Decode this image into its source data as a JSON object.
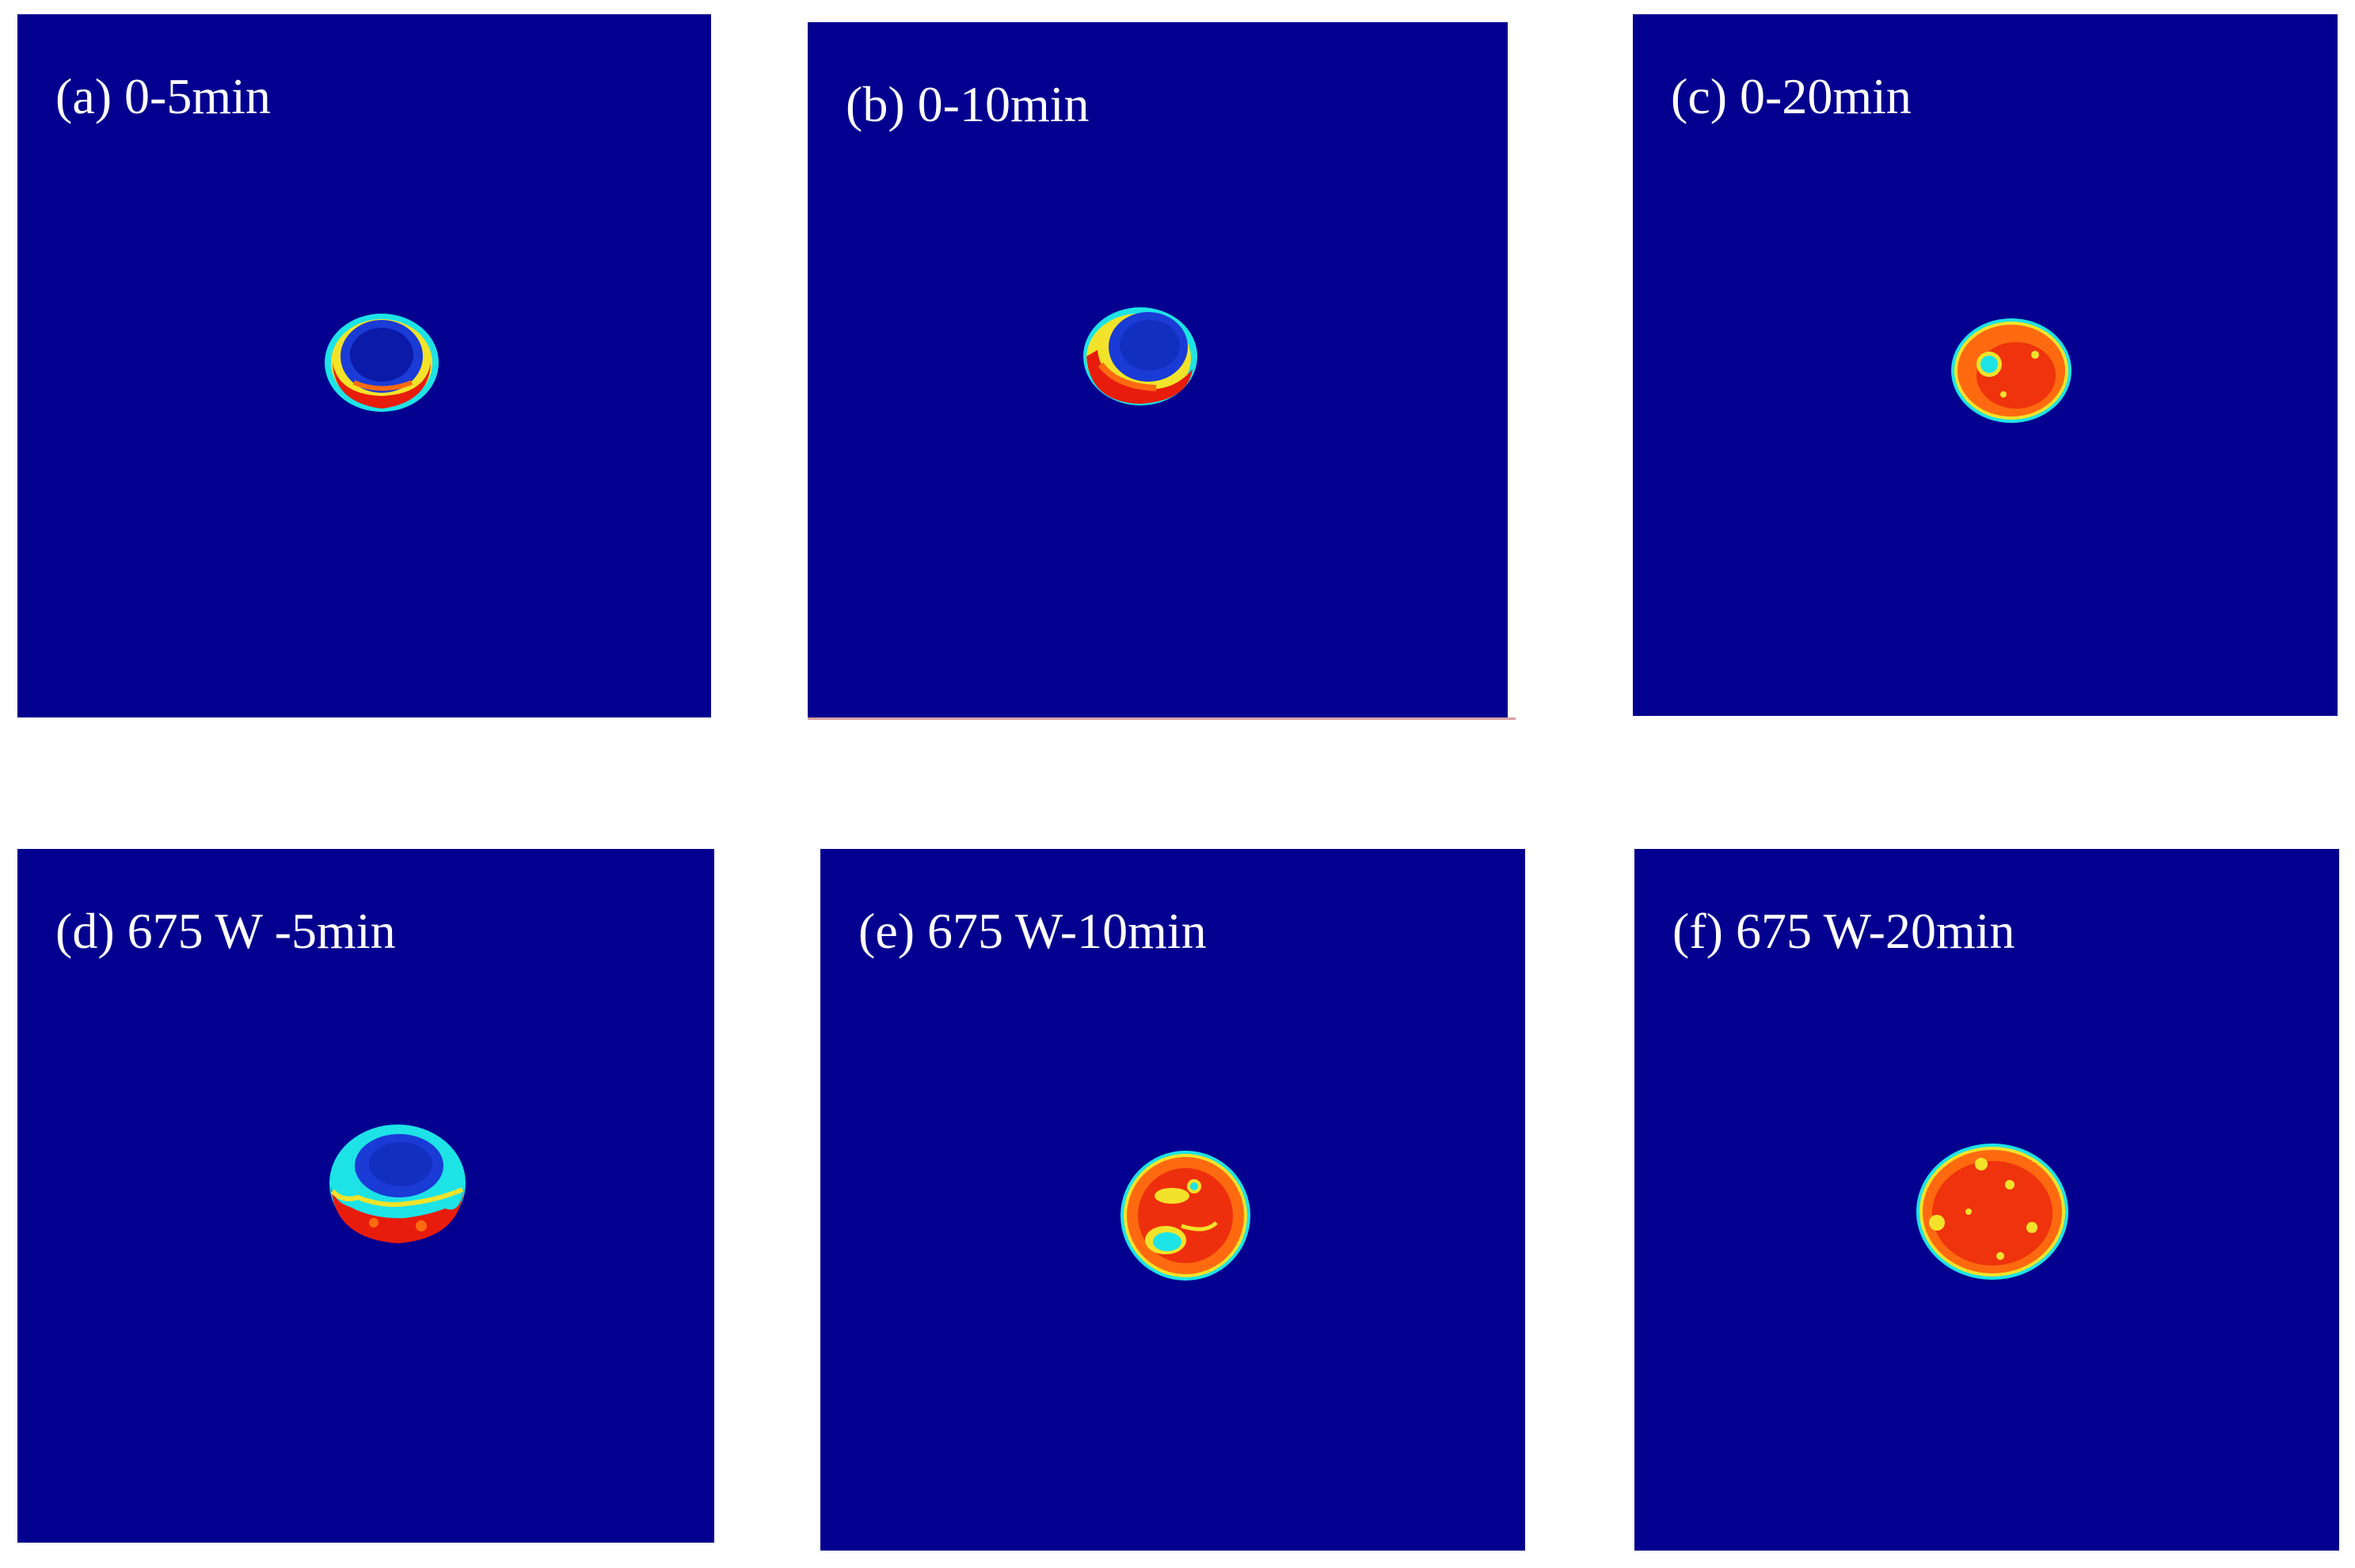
{
  "panels": [
    {
      "id": "a",
      "label": "(a) 0-5min"
    },
    {
      "id": "b",
      "label": "(b) 0-10min"
    },
    {
      "id": "c",
      "label": "(c) 0-20min"
    },
    {
      "id": "d",
      "label": "(d) 675 W -5min"
    },
    {
      "id": "e",
      "label": "(e) 675 W-10min"
    },
    {
      "id": "f",
      "label": "(f) 675 W-20min"
    }
  ],
  "colors": {
    "background": "#04008f",
    "cyan": "#1de3e6",
    "yellow": "#f2e32a",
    "orange": "#ff6a10",
    "red": "#e81c0c",
    "blue_inner": "#1a3bd6"
  }
}
